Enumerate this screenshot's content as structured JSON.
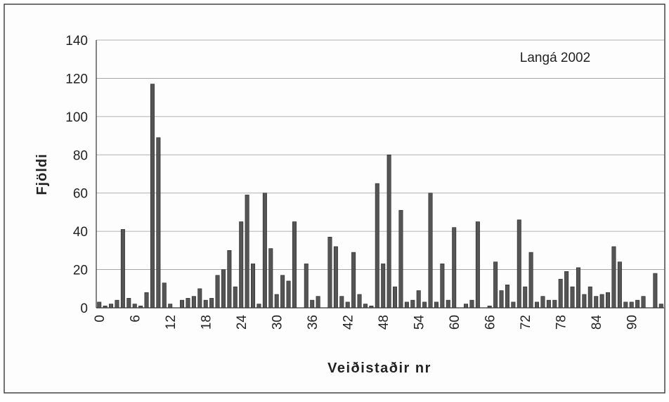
{
  "chart_data": {
    "type": "bar",
    "annotation": "Langá 2002",
    "x_label": "Veiðistaðir nr",
    "y_label": "Fjöldi",
    "categories": [
      "0",
      null,
      null,
      null,
      null,
      null,
      "6",
      null,
      null,
      null,
      null,
      null,
      "12",
      null,
      null,
      null,
      null,
      null,
      "18",
      null,
      null,
      null,
      null,
      null,
      "24",
      null,
      null,
      null,
      null,
      null,
      "30",
      null,
      null,
      null,
      null,
      null,
      "36",
      null,
      null,
      null,
      null,
      null,
      "42",
      null,
      null,
      null,
      null,
      null,
      "48",
      null,
      null,
      null,
      null,
      null,
      "54",
      null,
      null,
      null,
      null,
      null,
      "60",
      null,
      null,
      null,
      null,
      null,
      "66",
      null,
      null,
      null,
      null,
      null,
      "72",
      null,
      null,
      null,
      null,
      null,
      "78",
      null,
      null,
      null,
      null,
      null,
      "84",
      null,
      null,
      null,
      null,
      null,
      "90",
      null,
      null,
      null,
      null,
      null
    ],
    "values": [
      3,
      1,
      2,
      4,
      41,
      5,
      2,
      1,
      8,
      117,
      89,
      13,
      2,
      0,
      4,
      5,
      6,
      10,
      4,
      5,
      17,
      20,
      30,
      11,
      45,
      59,
      23,
      2,
      60,
      31,
      7,
      17,
      14,
      45,
      0,
      23,
      4,
      6,
      0,
      37,
      32,
      6,
      3,
      29,
      7,
      2,
      1,
      65,
      23,
      80,
      11,
      51,
      3,
      4,
      9,
      3,
      60,
      3,
      23,
      4,
      42,
      0,
      2,
      4,
      45,
      0,
      1,
      24,
      9,
      12,
      3,
      46,
      11,
      29,
      3,
      6,
      4,
      4,
      15,
      19,
      11,
      21,
      7,
      11,
      6,
      7,
      8,
      32,
      24,
      3,
      3,
      4,
      6,
      0,
      18,
      2
    ],
    "color": "#555555",
    "ylim": [
      0,
      140
    ],
    "yticks": [
      0,
      20,
      40,
      60,
      80,
      100,
      120,
      140
    ],
    "grid": true
  }
}
